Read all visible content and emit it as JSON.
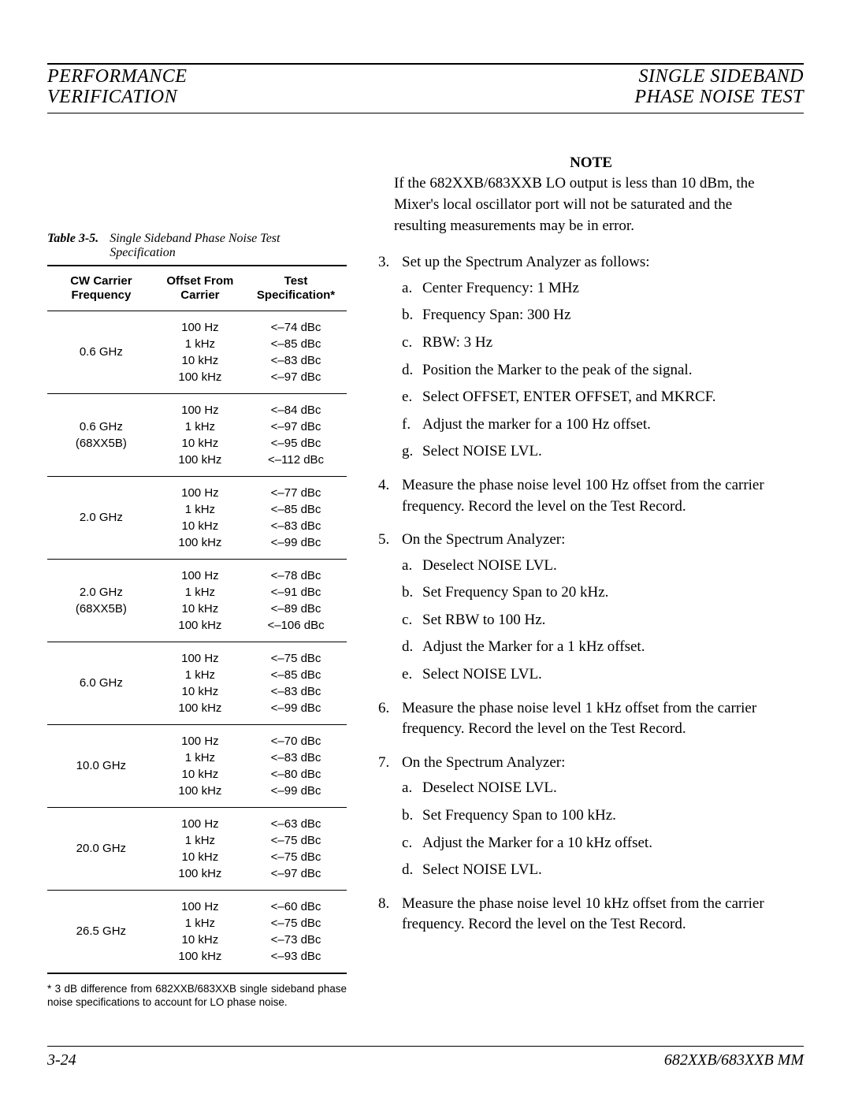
{
  "header": {
    "left1": "PERFORMANCE",
    "left2": "VERIFICATION",
    "right1": "SINGLE SIDEBAND",
    "right2": "PHASE NOISE TEST"
  },
  "table": {
    "caption_label": "Table 3-5.",
    "caption_title": "Single Sideband Phase Noise Test Specification",
    "col1": "CW Carrier Frequency",
    "col2": "Offset From Carrier",
    "col3": "Test Specification*",
    "rows": [
      {
        "freq": "0.6 GHz",
        "offsets": [
          "100 Hz",
          "1 kHz",
          "10 kHz",
          "100 kHz"
        ],
        "specs": [
          "<–74 dBc",
          "<–85 dBc",
          "<–83 dBc",
          "<–97 dBc"
        ]
      },
      {
        "freq": "0.6 GHz\n(68XX5B)",
        "offsets": [
          "100 Hz",
          "1 kHz",
          "10 kHz",
          "100 kHz"
        ],
        "specs": [
          "<–84 dBc",
          "<–97 dBc",
          "<–95 dBc",
          "<–112 dBc"
        ]
      },
      {
        "freq": "2.0 GHz",
        "offsets": [
          "100 Hz",
          "1 kHz",
          "10 kHz",
          "100 kHz"
        ],
        "specs": [
          "<–77 dBc",
          "<–85 dBc",
          "<–83 dBc",
          "<–99 dBc"
        ]
      },
      {
        "freq": "2.0 GHz\n(68XX5B)",
        "offsets": [
          "100 Hz",
          "1 kHz",
          "10 kHz",
          "100 kHz"
        ],
        "specs": [
          "<–78 dBc",
          "<–91 dBc",
          "<–89 dBc",
          "<–106 dBc"
        ]
      },
      {
        "freq": "6.0 GHz",
        "offsets": [
          "100 Hz",
          "1 kHz",
          "10 kHz",
          "100 kHz"
        ],
        "specs": [
          "<–75 dBc",
          "<–85 dBc",
          "<–83 dBc",
          "<–99 dBc"
        ]
      },
      {
        "freq": "10.0 GHz",
        "offsets": [
          "100 Hz",
          "1 kHz",
          "10 kHz",
          "100 kHz"
        ],
        "specs": [
          "<–70 dBc",
          "<–83 dBc",
          "<–80 dBc",
          "<–99 dBc"
        ]
      },
      {
        "freq": "20.0 GHz",
        "offsets": [
          "100 Hz",
          "1 kHz",
          "10 kHz",
          "100 kHz"
        ],
        "specs": [
          "<–63 dBc",
          "<–75 dBc",
          "<–75 dBc",
          "<–97 dBc"
        ]
      },
      {
        "freq": "26.5 GHz",
        "offsets": [
          "100 Hz",
          "1 kHz",
          "10 kHz",
          "100 kHz"
        ],
        "specs": [
          "<–60 dBc",
          "<–75 dBc",
          "<–73 dBc",
          "<–93 dBc"
        ]
      }
    ],
    "footnote": "* 3 dB difference from 682XXB/683XXB single sideband phase noise specifications to account for LO phase noise."
  },
  "right": {
    "note_title": "NOTE",
    "note_body": "If the 682XXB/683XXB LO output is less than 10 dBm, the Mixer's local oscillator port will not be saturated and the resulting measurements may be in error.",
    "steps": [
      {
        "text": "Set up the Spectrum Analyzer as follows:",
        "subs": [
          "Center Frequency: 1 MHz",
          "Frequency Span: 300 Hz",
          "RBW: 3 Hz",
          "Position the Marker to the peak of the signal.",
          "Select OFFSET, ENTER OFFSET, and MKRCF.",
          "Adjust the marker for a 100 Hz offset.",
          "Select NOISE LVL."
        ]
      },
      {
        "text": "Measure the phase noise level 100 Hz offset from the carrier frequency. Record the level on the Test Record."
      },
      {
        "text": "On the Spectrum Analyzer:",
        "subs": [
          "Deselect NOISE LVL.",
          "Set Frequency Span to 20 kHz.",
          "Set RBW to 100 Hz.",
          "Adjust the Marker for a 1 kHz offset.",
          "Select NOISE LVL."
        ]
      },
      {
        "text": "Measure the phase noise level 1 kHz offset from the carrier frequency. Record the level on the Test Record."
      },
      {
        "text": "On the Spectrum Analyzer:",
        "subs": [
          "Deselect NOISE LVL.",
          "Set Frequency Span to 100 kHz.",
          "Adjust the Marker for a 10 kHz offset.",
          "Select NOISE LVL."
        ]
      },
      {
        "text": "Measure the phase noise level 10 kHz offset from the carrier frequency. Record the level on the Test Record."
      }
    ]
  },
  "footer": {
    "left": "3-24",
    "right": "682XXB/683XXB MM"
  }
}
